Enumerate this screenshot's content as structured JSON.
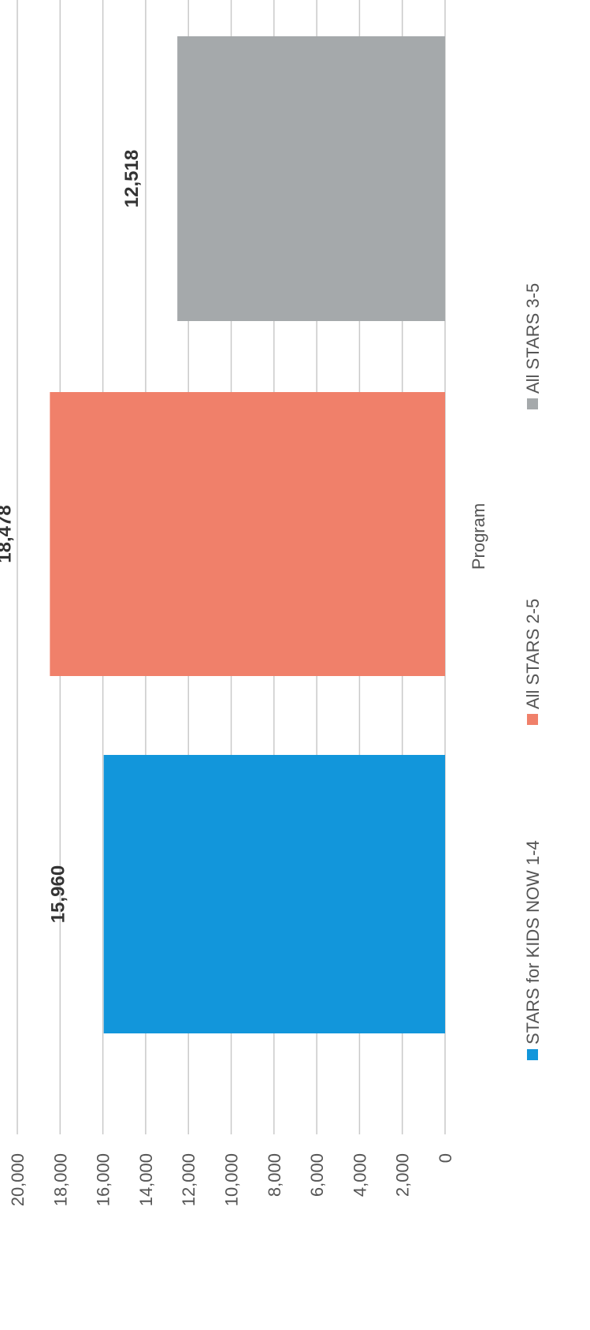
{
  "chart_data": {
    "type": "bar",
    "orientation": "vertical, rotated 90 degrees clockwise on page",
    "categories": [
      "Program"
    ],
    "xlabel": "Program",
    "ylabel": "",
    "title": "",
    "ylim": [
      0,
      20000
    ],
    "yticks": [
      0,
      2000,
      4000,
      6000,
      8000,
      10000,
      12000,
      14000,
      16000,
      18000,
      20000
    ],
    "ytick_labels": [
      "0",
      "2,000",
      "4,000",
      "6,000",
      "8,000",
      "10,000",
      "12,000",
      "14,000",
      "16,000",
      "18,000",
      "20,000"
    ],
    "grid": true,
    "legend_position": "bottom",
    "series": [
      {
        "name": "STARS for KIDS NOW 1-4",
        "values": [
          15960
        ],
        "label": "15,960",
        "color": "#1296DB"
      },
      {
        "name": "All STARS 2-5",
        "values": [
          18478
        ],
        "label": "18,478",
        "color": "#F0806A"
      },
      {
        "name": "All STARS 3-5",
        "values": [
          12518
        ],
        "label": "12,518",
        "color": "#A5A9AB"
      }
    ]
  }
}
